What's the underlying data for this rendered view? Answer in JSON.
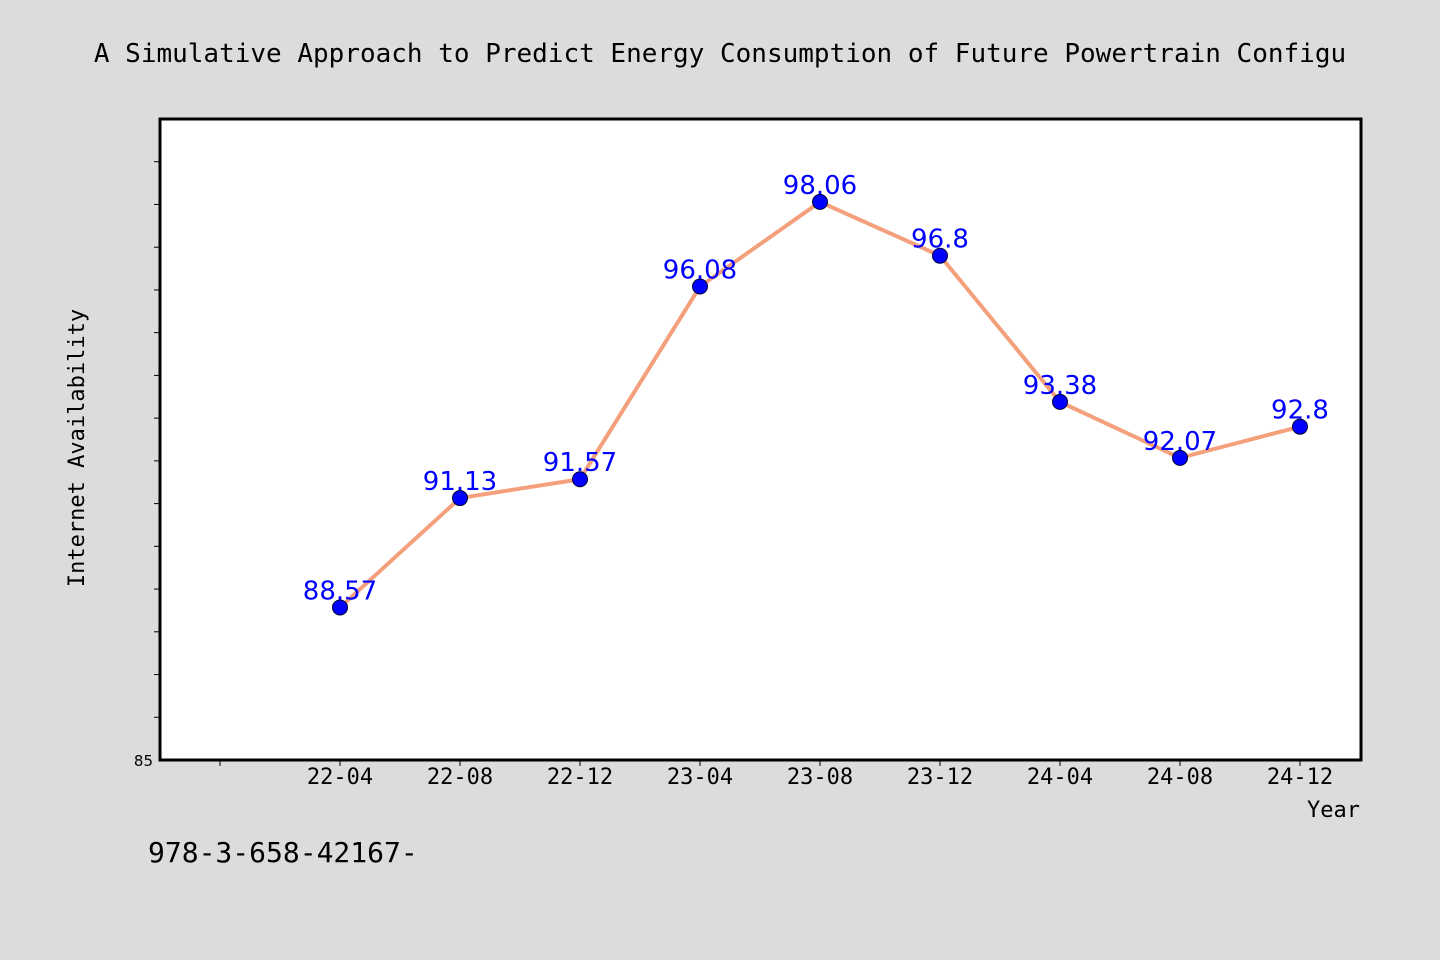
{
  "chart_data": {
    "type": "line",
    "title": "A Simulative Approach to Predict Energy Consumption of Future Powertrain Configu",
    "xlabel": "Year",
    "ylabel": "Internet Availability",
    "categories": [
      "22-04",
      "22-08",
      "22-12",
      "23-04",
      "23-08",
      "23-12",
      "24-04",
      "24-08",
      "24-12"
    ],
    "values": [
      88.57,
      91.13,
      91.57,
      96.08,
      98.06,
      96.8,
      93.38,
      92.07,
      92.8
    ],
    "value_labels": [
      "88.57",
      "91.13",
      "91.57",
      "96.08",
      "98.06",
      "96.8",
      "93.38",
      "92.07",
      "92.8"
    ],
    "ylim": [
      85,
      100
    ],
    "y_tick_labels": [
      "85"
    ],
    "grid": false,
    "legend": "none",
    "line_color": "#f4a07c",
    "marker_color": "#0000ff",
    "label_color": "#0000ff",
    "plot_background": "#ffffff",
    "page_background": "#dcdcdc"
  },
  "footer": {
    "text": "978-3-658-42167-"
  }
}
